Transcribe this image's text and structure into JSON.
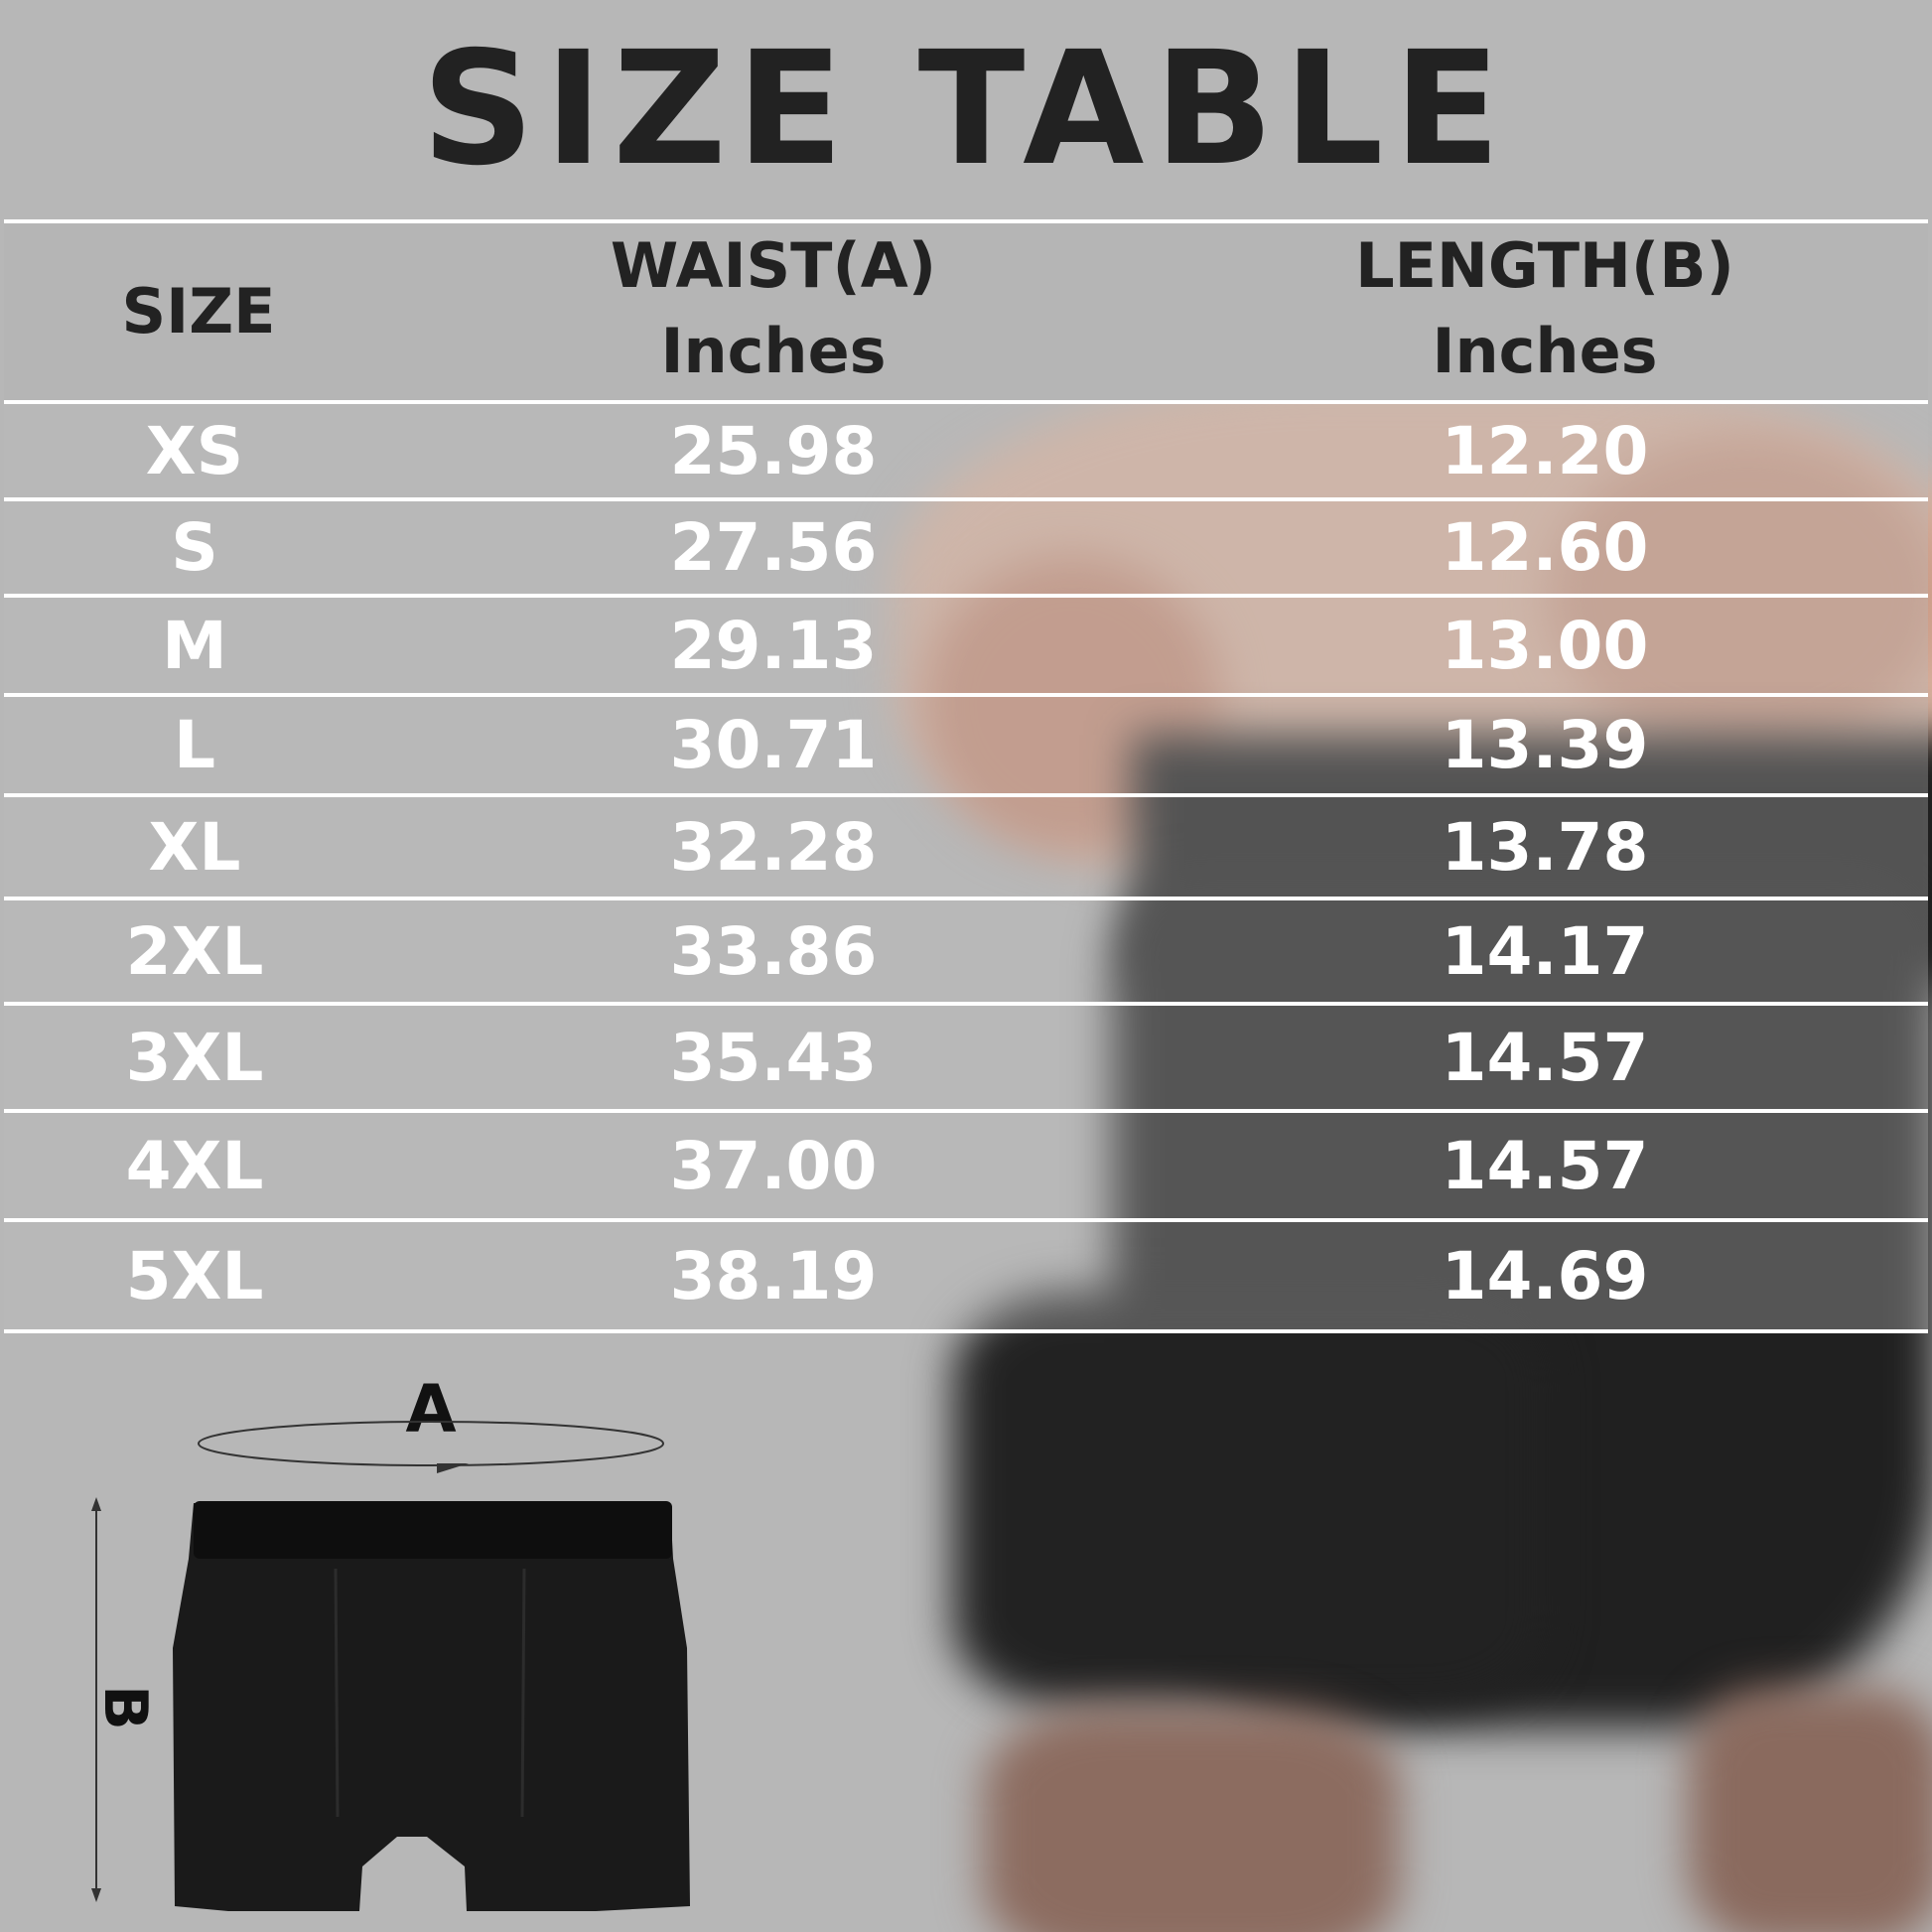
{
  "title": "SIZE TABLE",
  "table": {
    "headers": [
      {
        "line1": "SIZE",
        "line2": ""
      },
      {
        "line1": "WAIST(A)",
        "line2": "Inches"
      },
      {
        "line1": "LENGTH(B)",
        "line2": "Inches"
      }
    ],
    "rows": [
      {
        "size": "XS",
        "waist": "25.98",
        "length": "12.20"
      },
      {
        "size": "S",
        "waist": "27.56",
        "length": "12.60"
      },
      {
        "size": "M",
        "waist": "29.13",
        "length": "13.00"
      },
      {
        "size": "L",
        "waist": "30.71",
        "length": "13.39"
      },
      {
        "size": "XL",
        "waist": "32.28",
        "length": "13.78"
      },
      {
        "size": "2XL",
        "waist": "33.86",
        "length": "14.17"
      },
      {
        "size": "3XL",
        "waist": "35.43",
        "length": "14.57"
      },
      {
        "size": "4XL",
        "waist": "37.00",
        "length": "14.57"
      },
      {
        "size": "5XL",
        "waist": "38.19",
        "length": "14.69"
      }
    ]
  },
  "diagram": {
    "label_a": "A",
    "label_b": "B"
  },
  "colors": {
    "background": "#b7b7b7",
    "header_text": "#222222",
    "row_text": "#ffffff",
    "garment": "#1a1a1a"
  }
}
